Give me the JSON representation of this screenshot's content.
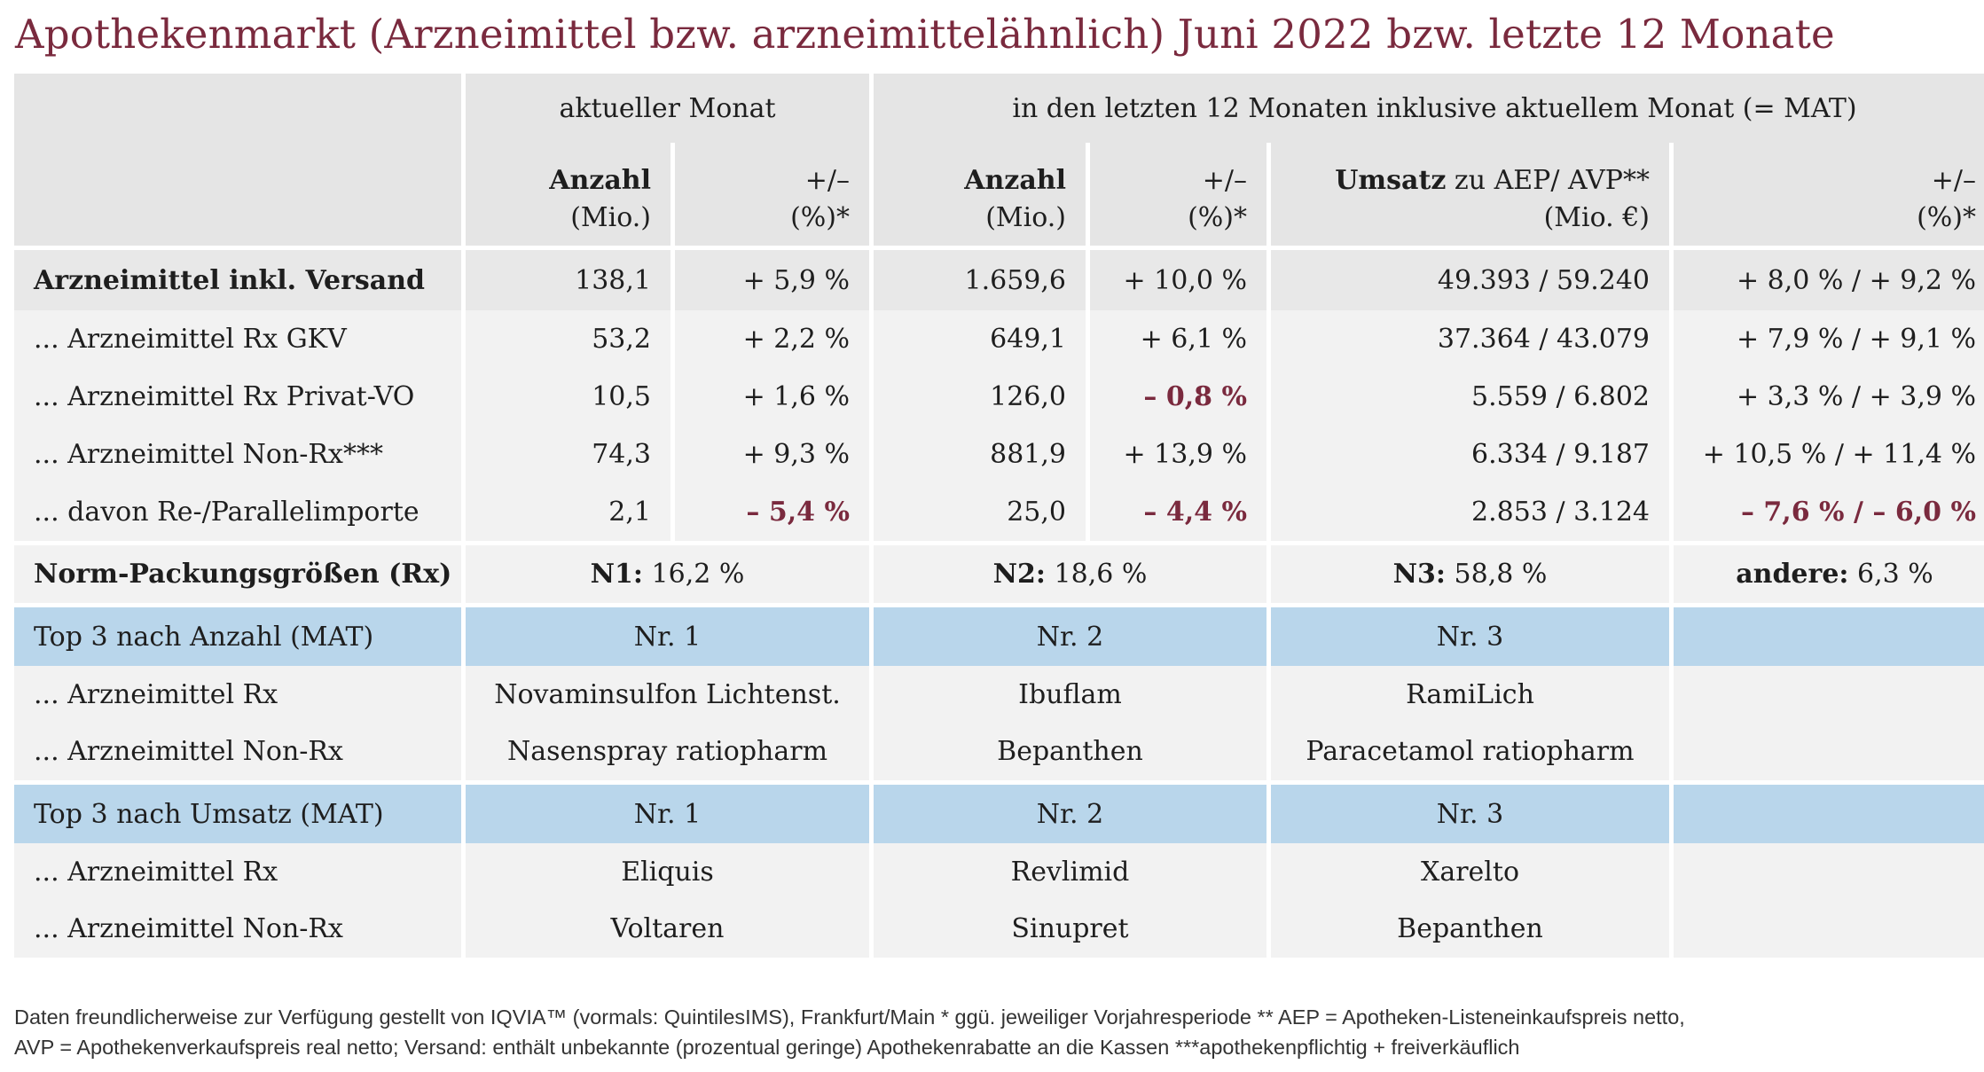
{
  "title": "Apothekenmarkt (Arzneimittel bzw. arzneimittelähnlich) Juni 2022 bzw. letzte 12 Monate",
  "header": {
    "group_current": "aktueller Monat",
    "group_mat": "in den letzten 12 Monaten inklusive aktuellem Monat (= MAT)",
    "anzahl": "Anzahl",
    "mio": "(Mio.)",
    "plusminus": "+/–",
    "pct": "(%)*",
    "umsatz_bold": "Umsatz",
    "umsatz_rest": " zu AEP/ AVP**",
    "mio_eur": "(Mio. €)"
  },
  "rows": [
    {
      "label": "Arzneimittel inkl. Versand",
      "a_cur": "138,1",
      "p_cur": "+ 5,9 %",
      "a_mat": "1.659,6",
      "p_mat": "+ 10,0 %",
      "umsatz": "49.393 / 59.240",
      "p_ums": "+ 8,0 % / + 9,2 %"
    },
    {
      "label": "... Arzneimittel Rx GKV",
      "a_cur": "53,2",
      "p_cur": "+ 2,2 %",
      "a_mat": "649,1",
      "p_mat": "+ 6,1 %",
      "umsatz": "37.364 / 43.079",
      "p_ums": "+ 7,9 % / + 9,1 %"
    },
    {
      "label": "... Arzneimittel Rx Privat-VO",
      "a_cur": "10,5",
      "p_cur": "+ 1,6 %",
      "a_mat": "126,0",
      "p_mat": "– 0,8 %",
      "umsatz": "5.559 / 6.802",
      "p_ums": "+ 3,3 % / + 3,9 %"
    },
    {
      "label": "... Arzneimittel Non-Rx***",
      "a_cur": "74,3",
      "p_cur": "+ 9,3 %",
      "a_mat": "881,9",
      "p_mat": "+ 13,9 %",
      "umsatz": "6.334 / 9.187",
      "p_ums": "+ 10,5 % / + 11,4 %"
    },
    {
      "label": "... davon Re-/Parallelimporte",
      "a_cur": "2,1",
      "p_cur": "– 5,4 %",
      "a_mat": "25,0",
      "p_mat": "– 4,4 %",
      "umsatz": "2.853 / 3.124",
      "p_ums": "– 7,6 % / – 6,0 %"
    }
  ],
  "norm": {
    "label": "Norm-Packungsgrößen (Rx)",
    "n1_key": "N1:",
    "n1_val": " 16,2 %",
    "n2_key": "N2:",
    "n2_val": " 18,6 %",
    "n3_key": "N3:",
    "n3_val": " 58,8 %",
    "andere_key": "andere:",
    "andere_val": " 6,3 %"
  },
  "top_anzahl": {
    "title": "Top 3 nach Anzahl (MAT)",
    "nr1": "Nr. 1",
    "nr2": "Nr. 2",
    "nr3": "Nr. 3",
    "rx_label": "... Arzneimittel Rx",
    "rx": [
      "Novaminsulfon Lichtenst.",
      "Ibuflam",
      "RamiLich"
    ],
    "nonrx_label": "... Arzneimittel Non-Rx",
    "nonrx": [
      "Nasenspray ratiopharm",
      "Bepanthen",
      "Paracetamol ratiopharm"
    ]
  },
  "top_umsatz": {
    "title": "Top 3 nach Umsatz (MAT)",
    "nr1": "Nr. 1",
    "nr2": "Nr. 2",
    "nr3": "Nr. 3",
    "rx_label": "... Arzneimittel Rx",
    "rx": [
      "Eliquis",
      "Revlimid",
      "Xarelto"
    ],
    "nonrx_label": "... Arzneimittel Non-Rx",
    "nonrx": [
      "Voltaren",
      "Sinupret",
      "Bepanthen"
    ]
  },
  "footnote": {
    "line1": "Daten freundlicherweise zur Verfügung gestellt von IQVIA™ (vormals: QuintilesIMS), Frankfurt/Main  * ggü. jeweiliger Vorjahresperiode  ** AEP = Apotheken-Listeneinkaufspreis netto,",
    "line2": "AVP = Apothekenverkaufspreis real netto; Versand: enthält unbekannte (prozentual geringe) Apothekenrabatte an die Kassen  ***apothekenpflichtig + freiverkäuflich"
  },
  "colors": {
    "title": "#7a2a3e",
    "negative": "#7a2a3e",
    "header_bg": "#e5e5e5",
    "section_blue": "#b9d6eb",
    "row_dark": "#e8e8e8",
    "row_light": "#f2f2f2"
  }
}
